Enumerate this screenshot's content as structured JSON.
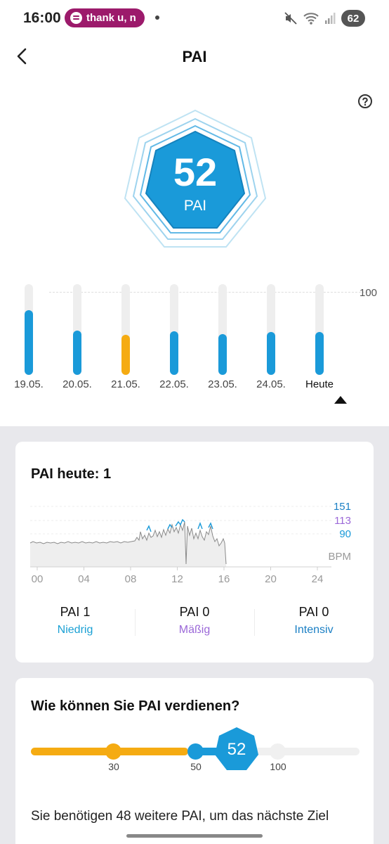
{
  "status_bar": {
    "time": "16:00",
    "media_text": "thank u, n",
    "battery": "62"
  },
  "header": {
    "title": "PAI"
  },
  "badge": {
    "value": "52",
    "unit": "PAI",
    "color": "#1a9ad9"
  },
  "week": {
    "max_label": "100",
    "bars": [
      {
        "label": "19.05.",
        "level": 0.71,
        "color": "#1a9ad9"
      },
      {
        "label": "20.05.",
        "level": 0.49,
        "color": "#1a9ad9"
      },
      {
        "label": "21.05.",
        "level": 0.44,
        "color": "#f5ab12"
      },
      {
        "label": "22.05.",
        "level": 0.48,
        "color": "#1a9ad9"
      },
      {
        "label": "23.05.",
        "level": 0.45,
        "color": "#1a9ad9"
      },
      {
        "label": "24.05.",
        "level": 0.47,
        "color": "#1a9ad9"
      },
      {
        "label": "Heute",
        "level": 0.47,
        "color": "#1a9ad9"
      }
    ]
  },
  "today_card": {
    "title": "PAI heute: 1",
    "thresholds": [
      {
        "label": "151",
        "color": "#1a7fc4"
      },
      {
        "label": "113",
        "color": "#9b68d8"
      },
      {
        "label": "90",
        "color": "#1a9ad9"
      }
    ],
    "unit": "BPM",
    "x_ticks": [
      "00",
      "04",
      "08",
      "12",
      "16",
      "20",
      "24"
    ],
    "zones": [
      {
        "value": "PAI 1",
        "label": "Niedrig",
        "color": "#1aa0d4"
      },
      {
        "value": "PAI 0",
        "label": "Mäßig",
        "color": "#9b68d8"
      },
      {
        "value": "PAI 0",
        "label": "Intensiv",
        "color": "#1a7fc4"
      }
    ]
  },
  "earn_card": {
    "title": "Wie können Sie PAI verdienen?",
    "current": "52",
    "ticks": [
      "30",
      "50",
      "100"
    ],
    "hint": "Sie benötigen 48 weitere PAI, um das nächste Ziel"
  }
}
